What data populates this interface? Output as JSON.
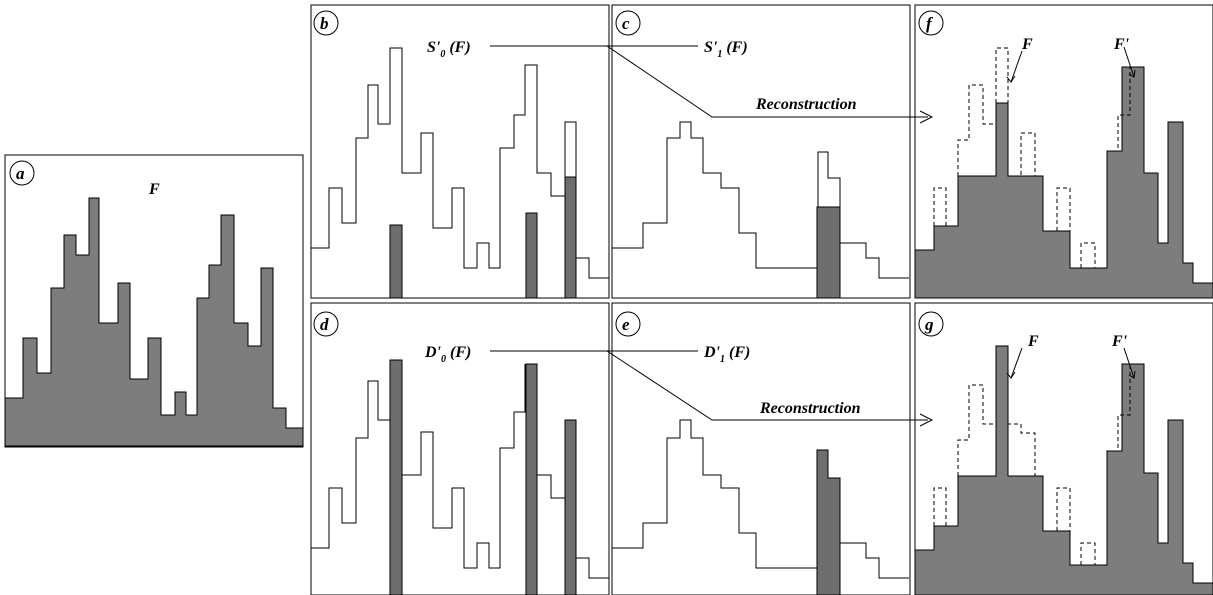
{
  "panels": {
    "a": {
      "badge": "a",
      "title": "F"
    },
    "b": {
      "badge": "b",
      "label_main": "S'",
      "label_sub": "0",
      "label_arg": " (F)"
    },
    "c": {
      "badge": "c",
      "label_main": "S'",
      "label_sub": "1",
      "label_arg": " (F)"
    },
    "d": {
      "badge": "d",
      "label_main": "D'",
      "label_sub": "0",
      "label_arg": " (F)"
    },
    "e": {
      "badge": "e",
      "label_main": "D'",
      "label_sub": "1",
      "label_arg": " (F)"
    },
    "f": {
      "badge": "f",
      "label_F": "F",
      "label_Fprime": "F'"
    },
    "g": {
      "badge": "g",
      "label_F": "F",
      "label_Fprime": "F'"
    }
  },
  "reconstruction_top": "Reconstruction",
  "reconstruction_bottom": "Reconstruction",
  "colors": {
    "fill_gray": "#7d7d7d",
    "bar_gray": "#6e6e6e",
    "stroke": "#000000"
  }
}
